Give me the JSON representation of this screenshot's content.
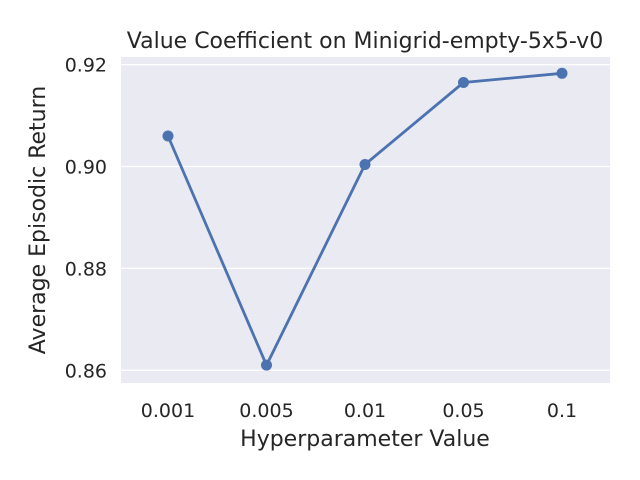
{
  "chart_data": {
    "type": "line",
    "title": "Value Coefficient on Minigrid-empty-5x5-v0",
    "xlabel": "Hyperparameter Value",
    "ylabel": "Average Episodic Return",
    "categories": [
      "0.001",
      "0.005",
      "0.01",
      "0.05",
      "0.1"
    ],
    "values": [
      0.906,
      0.861,
      0.9004,
      0.9165,
      0.9183
    ],
    "yticks": [
      0.86,
      0.88,
      0.9,
      0.92
    ],
    "ytick_labels": [
      "0.86",
      "0.88",
      "0.90",
      "0.92"
    ],
    "ylim": [
      0.8575,
      0.9215
    ],
    "grid": true,
    "colors": {
      "line": "#4c72b0",
      "marker": "#4c72b0",
      "background": "#eaeaf2",
      "grid": "#ffffff"
    }
  }
}
